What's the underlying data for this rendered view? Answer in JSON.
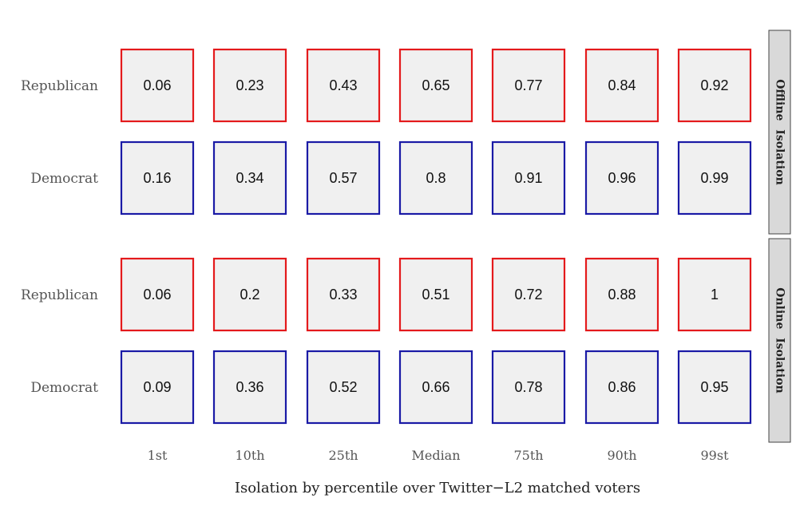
{
  "chart_data": {
    "type": "table",
    "xlabel": "Isolation by percentile over Twitter−L2 matched voters",
    "columns": [
      "1st",
      "10th",
      "25th",
      "Median",
      "75th",
      "90th",
      "99st"
    ],
    "colors": {
      "Republican": "#e41a1c",
      "Democrat": "#1a1aa6",
      "cell_fill": "#f0f0f0",
      "strip_fill": "#d9d9d9"
    },
    "panels": [
      {
        "strip": "Offline Isolation",
        "rows": [
          {
            "party": "Republican",
            "values": [
              "0.06",
              "0.23",
              "0.43",
              "0.65",
              "0.77",
              "0.84",
              "0.92"
            ]
          },
          {
            "party": "Democrat",
            "values": [
              "0.16",
              "0.34",
              "0.57",
              "0.8",
              "0.91",
              "0.96",
              "0.99"
            ]
          }
        ]
      },
      {
        "strip": "Online Isolation",
        "rows": [
          {
            "party": "Republican",
            "values": [
              "0.06",
              "0.2",
              "0.33",
              "0.51",
              "0.72",
              "0.88",
              "1"
            ]
          },
          {
            "party": "Democrat",
            "values": [
              "0.09",
              "0.36",
              "0.52",
              "0.66",
              "0.78",
              "0.86",
              "0.95"
            ]
          }
        ]
      }
    ]
  }
}
